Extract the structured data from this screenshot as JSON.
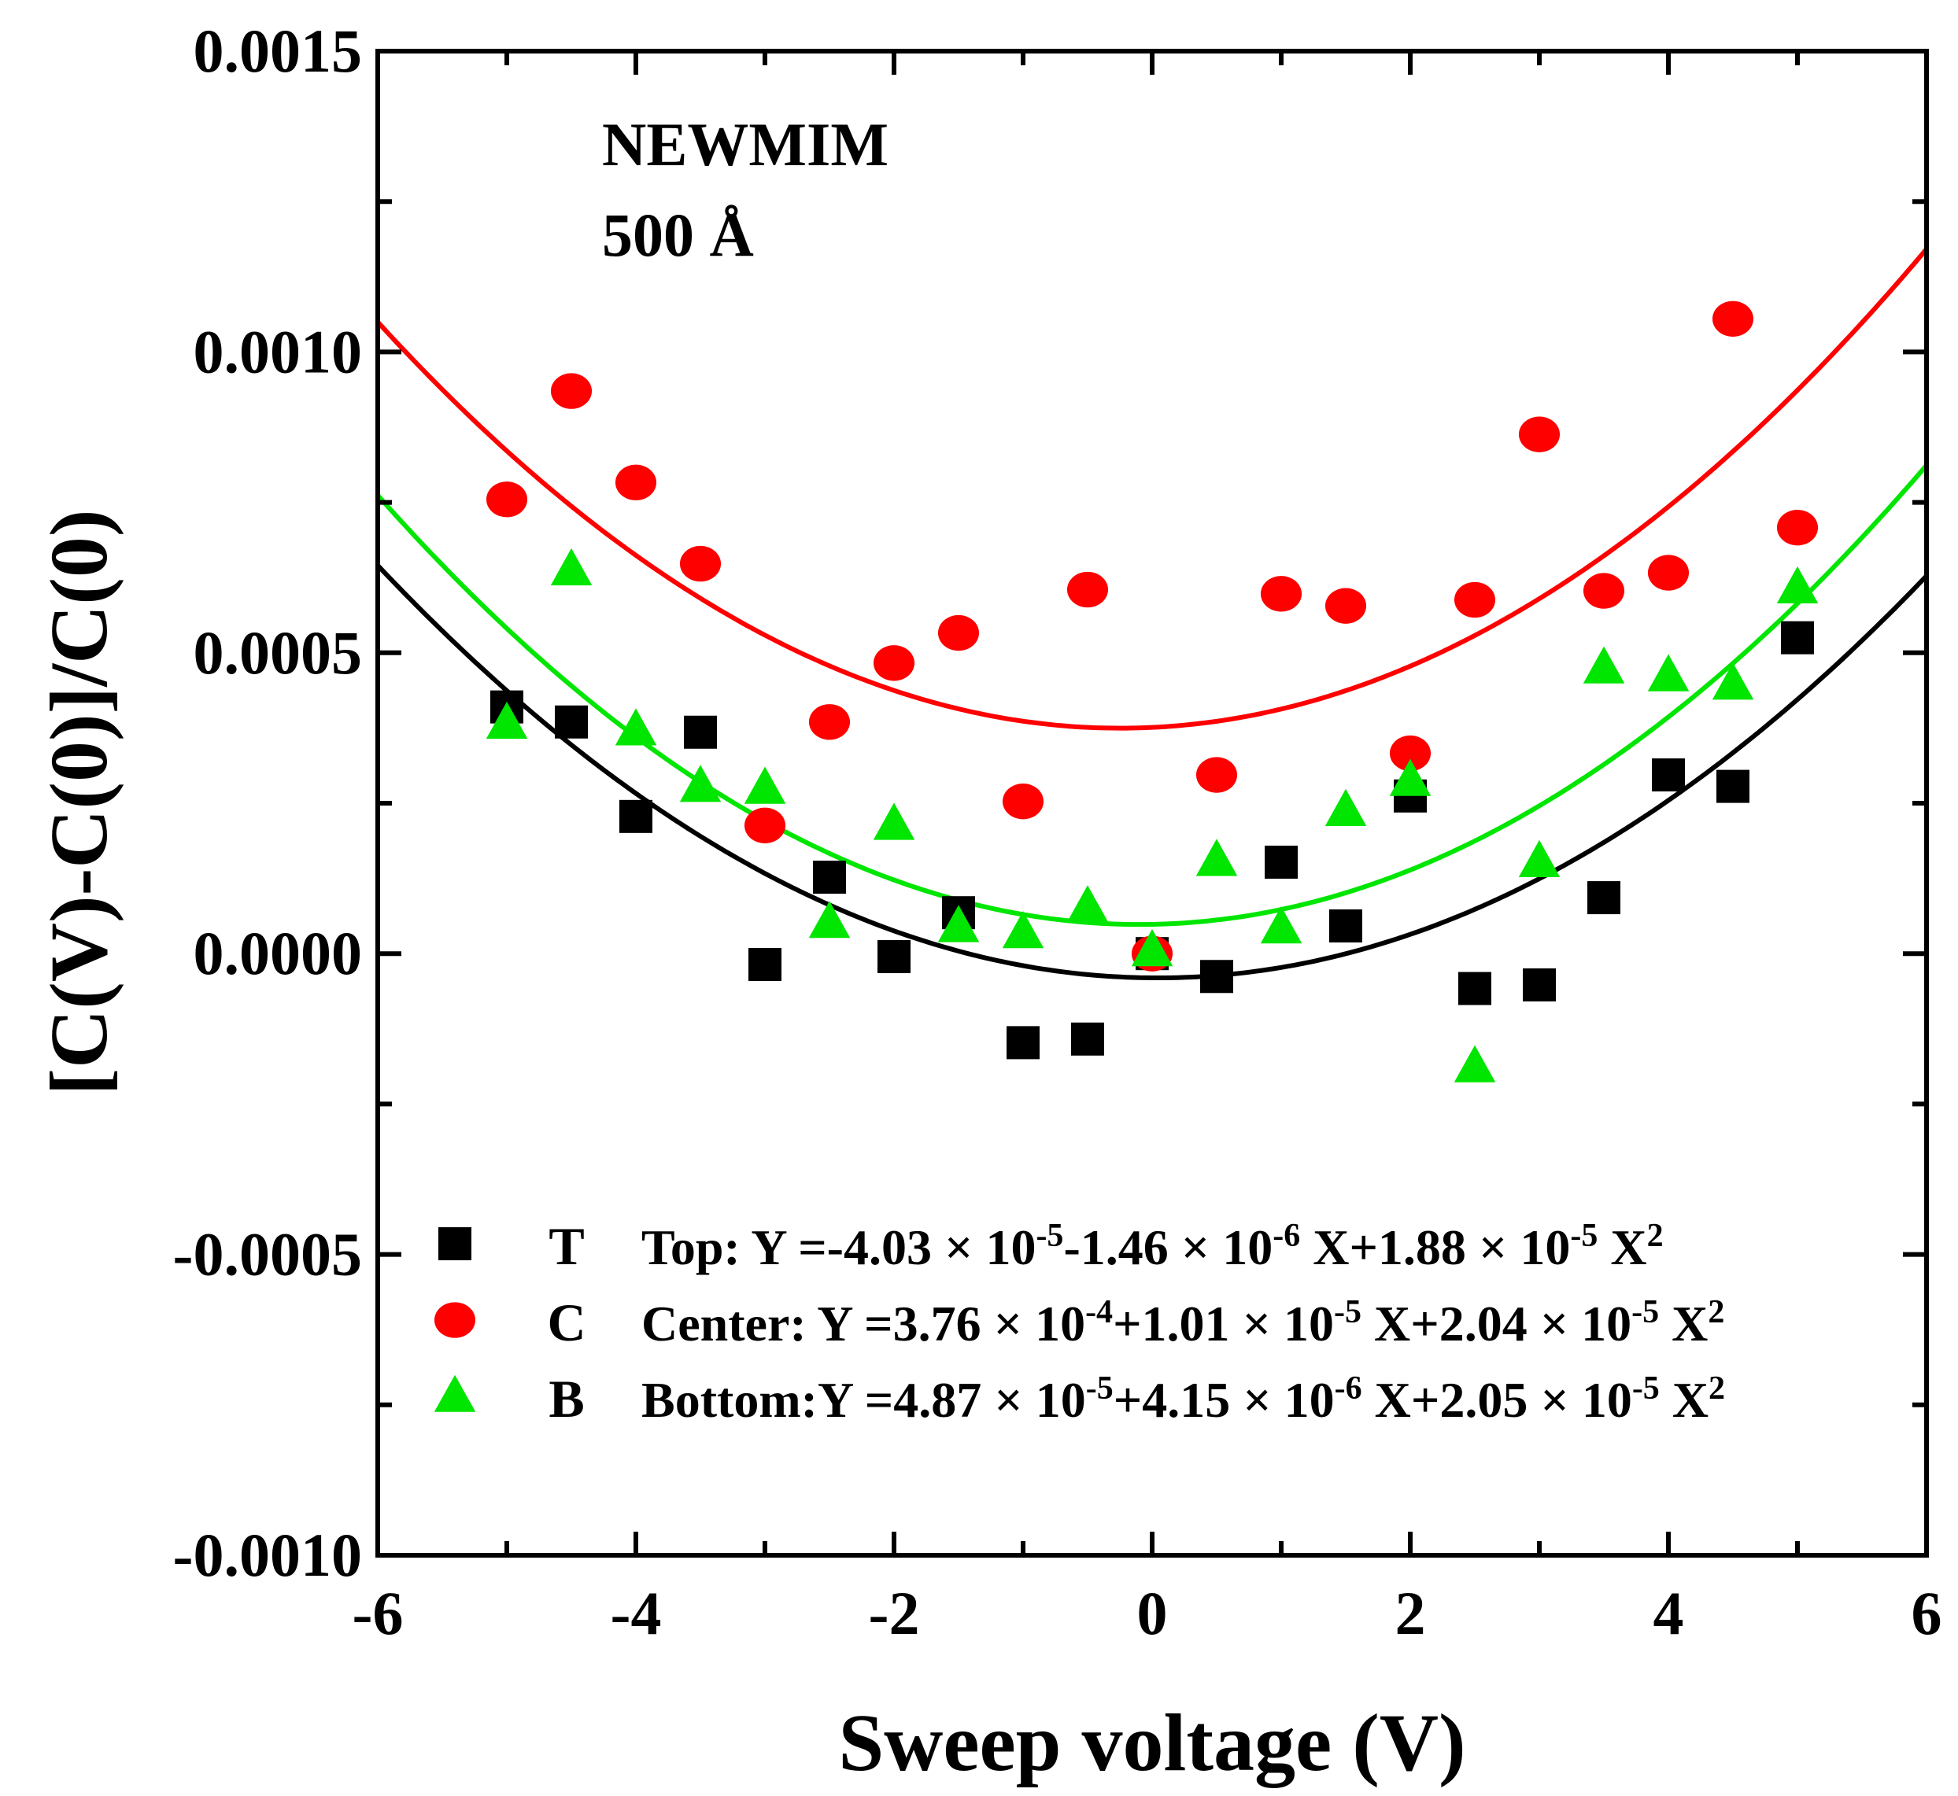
{
  "chart_data": {
    "type": "scatter",
    "xlabel": "Sweep voltage (V)",
    "ylabel": "[C(V)-C(0)]/C(0)",
    "xlim": [
      -6,
      6
    ],
    "ylim": [
      -0.001,
      0.0015
    ],
    "x_ticks": [
      -6,
      -4,
      -2,
      0,
      2,
      4,
      6
    ],
    "x_tick_labels": [
      "-6",
      "-4",
      "-2",
      "0",
      "2",
      "4",
      "6"
    ],
    "y_ticks": [
      -0.001,
      -0.0005,
      0,
      0.0005,
      0.001,
      0.0015
    ],
    "y_tick_labels": [
      "-0.0010",
      "-0.0005",
      "0.0000",
      "0.0005",
      "0.0010",
      "0.0015"
    ],
    "annotations": [
      "NEWMIM",
      "500 Å"
    ],
    "x": [
      -5,
      -4.5,
      -4,
      -3.5,
      -3,
      -2.5,
      -2,
      -1.5,
      -1,
      -0.5,
      0,
      0.5,
      1,
      1.5,
      2,
      2.5,
      3,
      3.5,
      4,
      4.5,
      5
    ],
    "series": [
      {
        "name": "T",
        "color": "#000000",
        "marker": "square",
        "values": [
          0.00041,
          0.000385,
          0.000228,
          0.000368,
          -1.8e-05,
          0.000127,
          -5e-06,
          6.8e-05,
          -0.000148,
          -0.000142,
          0.0,
          -3.8e-05,
          0.000152,
          4.6e-05,
          0.000262,
          -5.8e-05,
          -5.2e-05,
          9.3e-05,
          0.000297,
          0.000278,
          0.000525
        ],
        "fit": {
          "a": -4.03e-05,
          "b": -1.46e-06,
          "c": 1.88e-05
        },
        "fit_label": "Top: Y =-4.03 × 10",
        "fit_parts": {
          "prefix": "Top: Y =-4.03 × 10",
          "e1": "-5",
          "p2": "-1.46 × 10",
          "e2": "-6",
          "p3": " X+1.88 × 10",
          "e3": "-5",
          "p4": " X",
          "e4": "2"
        }
      },
      {
        "name": "C",
        "color": "#ff0000",
        "marker": "circle",
        "values": [
          0.000755,
          0.000935,
          0.000783,
          0.000648,
          0.000213,
          0.000385,
          0.000483,
          0.000533,
          0.000253,
          0.000605,
          0.0,
          0.000297,
          0.000598,
          0.000578,
          0.000333,
          0.000588,
          0.000863,
          0.000603,
          0.000633,
          0.001055,
          0.000708
        ],
        "fit": {
          "a": 0.000376,
          "b": 1.01e-05,
          "c": 2.04e-05
        },
        "fit_parts": {
          "prefix": "Center: Y =3.76 × 10",
          "e1": "-4",
          "p2": "+1.01 × 10",
          "e2": "-5",
          "p3": " X+2.04 × 10",
          "e3": "-5",
          "p4": " X",
          "e4": "2"
        }
      },
      {
        "name": "B",
        "color": "#00e600",
        "marker": "triangle",
        "values": [
          0.000383,
          0.000638,
          0.000372,
          0.000278,
          0.000275,
          5.2e-05,
          0.000215,
          4.5e-05,
          3.5e-05,
          7.8e-05,
          5e-06,
          0.000155,
          4.3e-05,
          0.000238,
          0.000288,
          -0.000188,
          0.000153,
          0.000475,
          0.000462,
          0.000448,
          0.000608
        ],
        "fit": {
          "a": 4.87e-05,
          "b": 4.15e-06,
          "c": 2.05e-05
        },
        "fit_parts": {
          "prefix": "Bottom:Y =4.87 × 10",
          "e1": "-5",
          "p2": "+4.15 × 10",
          "e2": "-6",
          "p3": " X+2.05 × 10",
          "e3": "-5",
          "p4": " X",
          "e4": "2"
        }
      }
    ]
  }
}
